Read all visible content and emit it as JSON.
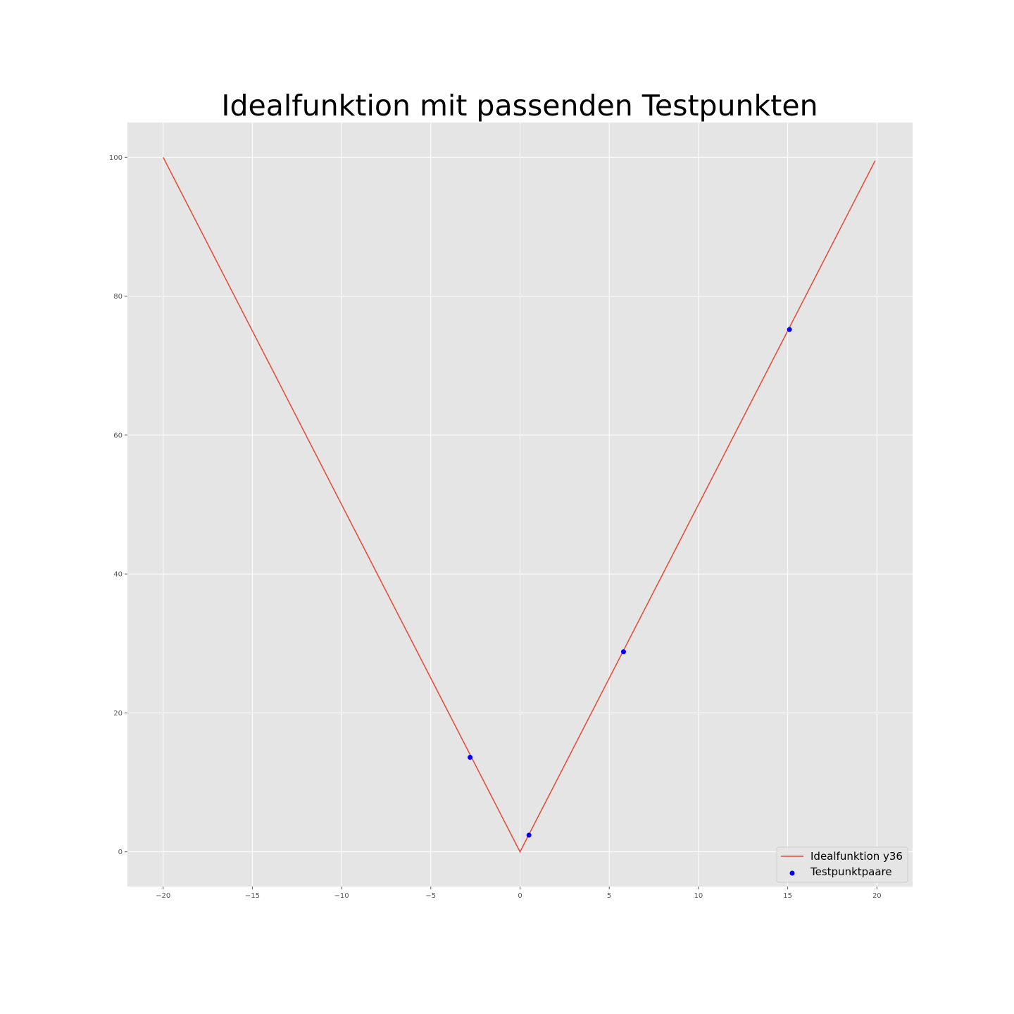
{
  "chart_data": {
    "type": "line",
    "title": "Idealfunktion mit passenden Testpunkten",
    "xlabel": "",
    "ylabel": "",
    "xlim": [
      -22,
      22
    ],
    "ylim": [
      -5,
      105
    ],
    "x_ticks": [
      -20,
      -15,
      -10,
      -5,
      0,
      5,
      10,
      15,
      20
    ],
    "x_tick_labels": [
      "−20",
      "−15",
      "−10",
      "−5",
      "0",
      "5",
      "10",
      "15",
      "20"
    ],
    "y_ticks": [
      0,
      20,
      40,
      60,
      80,
      100
    ],
    "y_tick_labels": [
      "0",
      "20",
      "40",
      "60",
      "80",
      "100"
    ],
    "grid": true,
    "legend_position": "lower-right",
    "series": [
      {
        "name": "Idealfunktion y36",
        "kind": "line",
        "color": "#e24a33",
        "x": [
          -20,
          0,
          19.9
        ],
        "y": [
          100,
          0,
          99.5
        ]
      },
      {
        "name": "Testpunktpaare",
        "kind": "scatter",
        "color": "#0000ff",
        "x": [
          -2.8,
          0.5,
          5.8,
          15.1
        ],
        "y": [
          13.6,
          2.4,
          28.8,
          75.2
        ]
      }
    ]
  }
}
